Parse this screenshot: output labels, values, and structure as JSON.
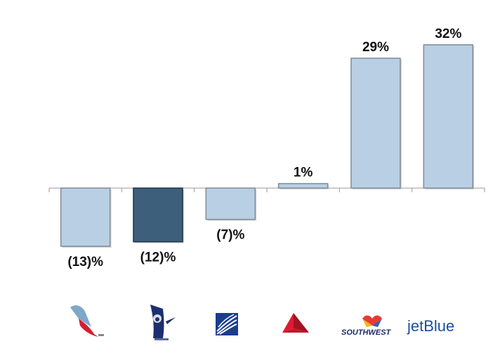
{
  "chart_data": {
    "type": "bar",
    "title": "",
    "xlabel": "",
    "ylabel": "",
    "categories": [
      "american-airlines-logo",
      "alaska-airlines-logo",
      "united-airlines-logo",
      "delta-logo",
      "southwest-logo",
      "jetblue-logo"
    ],
    "values": [
      -13,
      -12,
      -7,
      1,
      29,
      32
    ],
    "data_labels": [
      "(13)%",
      "(12)%",
      "(7)%",
      "1%",
      "29%",
      "32%"
    ],
    "ylim": [
      -15,
      35
    ],
    "grid": false,
    "legend": "none",
    "colors": {
      "default_bar": "#b9cfe4",
      "default_bar_edge": "#7f8a96",
      "highlight_bar": "#3e5f7c",
      "highlight_bar_edge": "#1f3347",
      "highlight_index": 1,
      "axis": "#9a9a9a"
    }
  },
  "logos": {
    "southwest_text": "SOUTHWEST",
    "jetblue_text": "jetBlue"
  }
}
